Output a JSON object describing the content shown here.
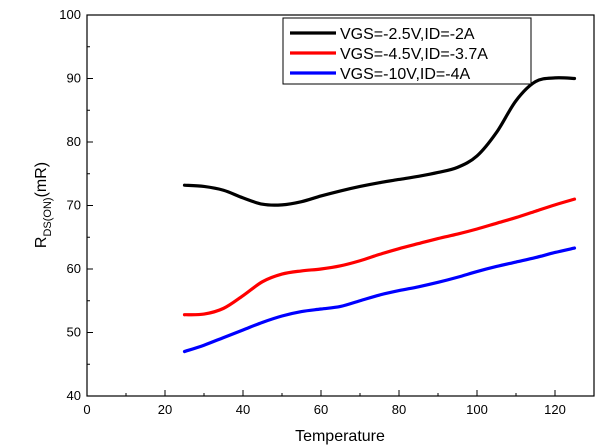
{
  "chart_data": {
    "type": "line",
    "title": "",
    "xlabel": "Temperature",
    "ylabel": {
      "main": "R",
      "sub": "DS(ON)",
      "unit": "(mR)"
    },
    "xlim": [
      0,
      130
    ],
    "ylim": [
      40,
      100
    ],
    "xticks": [
      0,
      20,
      40,
      60,
      80,
      100,
      120
    ],
    "yticks": [
      40,
      50,
      60,
      70,
      80,
      90,
      100
    ],
    "grid": false,
    "legend_position": "top-right",
    "series": [
      {
        "name": "VGS=-2.5V,ID=-2A",
        "color": "#000000",
        "x": [
          25,
          30,
          35,
          40,
          45,
          50,
          55,
          60,
          65,
          70,
          75,
          80,
          85,
          90,
          95,
          100,
          105,
          110,
          115,
          120,
          125
        ],
        "y": [
          73.2,
          73.0,
          72.4,
          71.2,
          70.2,
          70.1,
          70.6,
          71.5,
          72.3,
          73.0,
          73.6,
          74.1,
          74.6,
          75.2,
          76.0,
          77.8,
          81.5,
          86.5,
          89.5,
          90.1,
          90.0
        ]
      },
      {
        "name": "VGS=-4.5V,ID=-3.7A",
        "color": "#ff0000",
        "x": [
          25,
          30,
          35,
          40,
          45,
          50,
          55,
          60,
          65,
          70,
          75,
          80,
          85,
          90,
          95,
          100,
          105,
          110,
          115,
          120,
          125
        ],
        "y": [
          52.8,
          52.9,
          53.8,
          55.8,
          58.0,
          59.2,
          59.7,
          60.0,
          60.5,
          61.3,
          62.3,
          63.2,
          64.0,
          64.8,
          65.5,
          66.3,
          67.2,
          68.1,
          69.1,
          70.1,
          71.0
        ]
      },
      {
        "name": "VGS=-10V,ID=-4A",
        "color": "#0000ff",
        "x": [
          25,
          30,
          35,
          40,
          45,
          50,
          55,
          60,
          65,
          70,
          75,
          80,
          85,
          90,
          95,
          100,
          105,
          110,
          115,
          120,
          125
        ],
        "y": [
          47.0,
          48.0,
          49.2,
          50.4,
          51.6,
          52.6,
          53.3,
          53.7,
          54.1,
          55.0,
          55.9,
          56.6,
          57.2,
          57.9,
          58.7,
          59.6,
          60.4,
          61.1,
          61.8,
          62.6,
          63.3
        ]
      }
    ]
  }
}
